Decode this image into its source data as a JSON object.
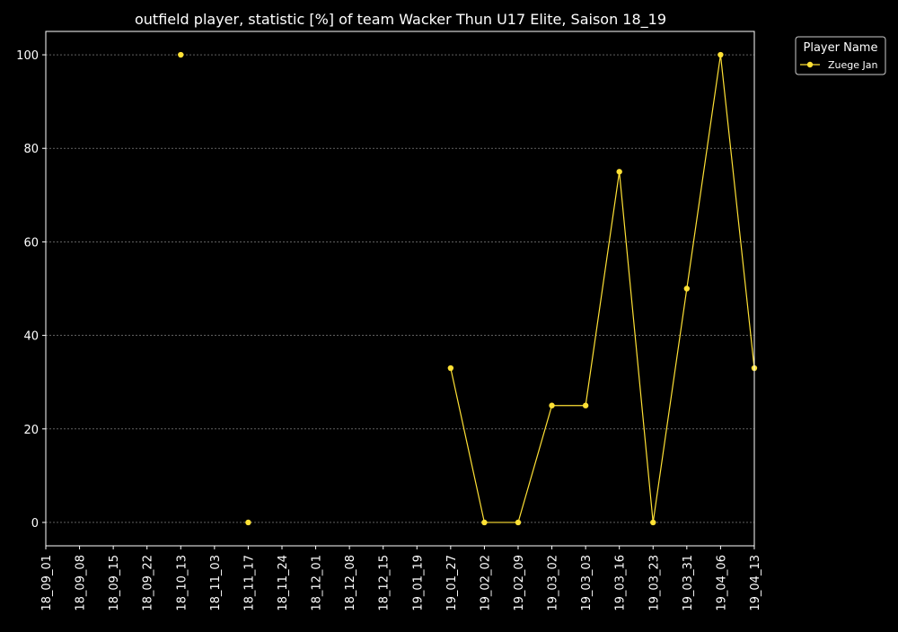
{
  "chart_data": {
    "type": "line",
    "title": "outfield player, statistic [%] of team Wacker Thun U17 Elite, Saison 18_19",
    "xlabel": "",
    "ylabel": "",
    "categories": [
      "18_09_01",
      "18_09_08",
      "18_09_15",
      "18_09_22",
      "18_10_13",
      "18_11_03",
      "18_11_17",
      "18_11_24",
      "18_12_01",
      "18_12_08",
      "18_12_15",
      "19_01_19",
      "19_01_27",
      "19_02_02",
      "19_02_09",
      "19_03_02",
      "19_03_03",
      "19_03_16",
      "19_03_23",
      "19_03_31",
      "19_04_06",
      "19_04_13"
    ],
    "yticks": [
      0,
      20,
      40,
      60,
      80,
      100
    ],
    "ylim": [
      -5,
      105
    ],
    "grid": true,
    "legend": {
      "title": "Player Name",
      "placement": "outside-top-right"
    },
    "series": [
      {
        "name": "Zuege Jan",
        "color": "#ffe135",
        "values": [
          null,
          null,
          null,
          null,
          100,
          null,
          0,
          null,
          null,
          null,
          null,
          null,
          33,
          0,
          0,
          25,
          25,
          75,
          0,
          50,
          100,
          33
        ]
      }
    ]
  },
  "colors": {
    "background": "#000000",
    "axes": "#ffffff",
    "grid": "#9a9a9a",
    "text": "#ffffff"
  }
}
